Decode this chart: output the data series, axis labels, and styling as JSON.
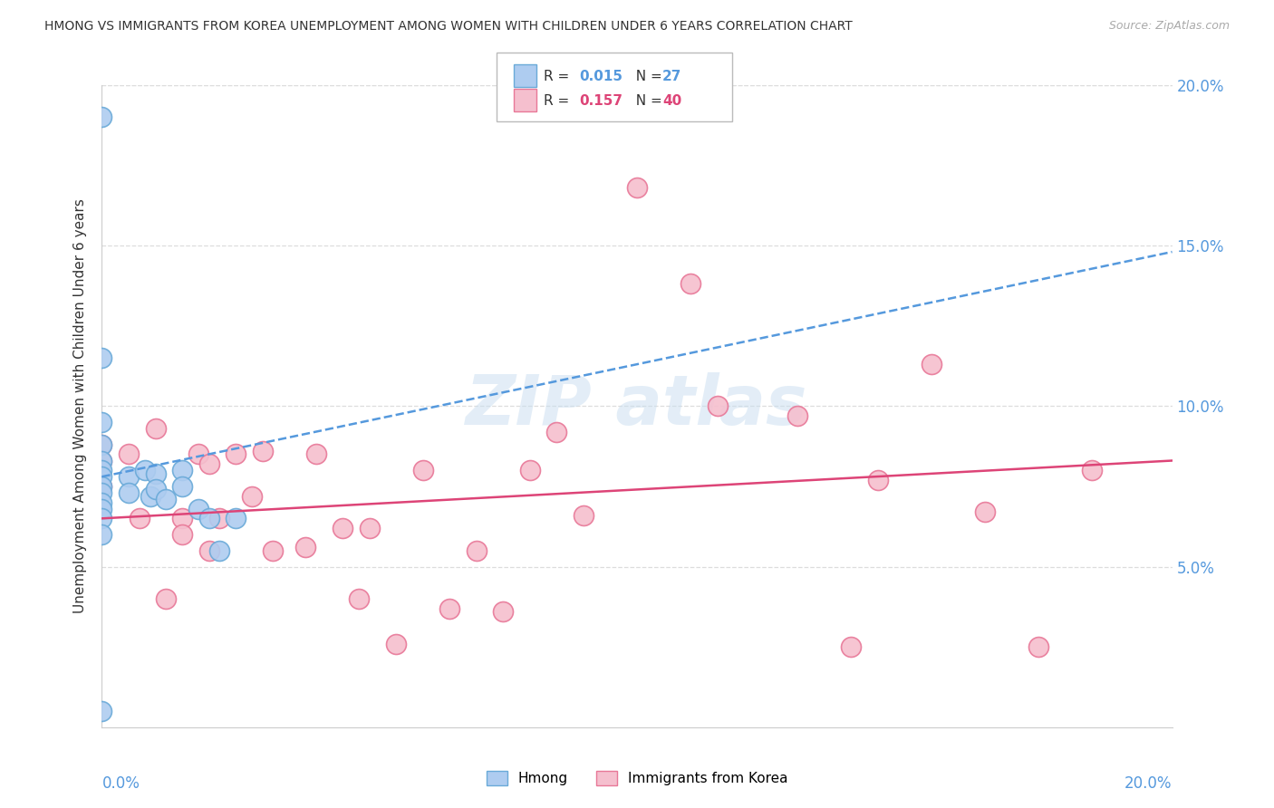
{
  "title": "HMONG VS IMMIGRANTS FROM KOREA UNEMPLOYMENT AMONG WOMEN WITH CHILDREN UNDER 6 YEARS CORRELATION CHART",
  "source": "Source: ZipAtlas.com",
  "ylabel": "Unemployment Among Women with Children Under 6 years",
  "xmin": 0.0,
  "xmax": 0.2,
  "ymin": 0.0,
  "ymax": 0.2,
  "yticks": [
    0.0,
    0.05,
    0.1,
    0.15,
    0.2
  ],
  "ytick_labels": [
    "",
    "5.0%",
    "10.0%",
    "15.0%",
    "20.0%"
  ],
  "hmong_color": "#aeccf0",
  "hmong_edge_color": "#6aaad8",
  "korea_color": "#f5bfce",
  "korea_edge_color": "#e87898",
  "trendline_hmong_color": "#5599dd",
  "trendline_korea_color": "#dd4477",
  "background_color": "#ffffff",
  "grid_color": "#dddddd",
  "hmong_trendline_x0": 0.0,
  "hmong_trendline_y0": 0.078,
  "hmong_trendline_x1": 0.2,
  "hmong_trendline_y1": 0.148,
  "korea_trendline_x0": 0.0,
  "korea_trendline_y0": 0.065,
  "korea_trendline_x1": 0.2,
  "korea_trendline_y1": 0.083,
  "hmong_x": [
    0.0,
    0.0,
    0.0,
    0.0,
    0.0,
    0.0,
    0.0,
    0.0,
    0.0,
    0.0,
    0.0,
    0.0,
    0.0,
    0.005,
    0.005,
    0.008,
    0.009,
    0.01,
    0.01,
    0.012,
    0.015,
    0.015,
    0.018,
    0.02,
    0.022,
    0.025,
    0.0
  ],
  "hmong_y": [
    0.19,
    0.115,
    0.095,
    0.088,
    0.083,
    0.08,
    0.078,
    0.075,
    0.073,
    0.07,
    0.068,
    0.065,
    0.06,
    0.078,
    0.073,
    0.08,
    0.072,
    0.079,
    0.074,
    0.071,
    0.08,
    0.075,
    0.068,
    0.065,
    0.055,
    0.065,
    0.005
  ],
  "korea_x": [
    0.0,
    0.0,
    0.0,
    0.005,
    0.007,
    0.01,
    0.012,
    0.015,
    0.015,
    0.018,
    0.02,
    0.02,
    0.022,
    0.025,
    0.028,
    0.03,
    0.032,
    0.038,
    0.04,
    0.045,
    0.048,
    0.05,
    0.055,
    0.06,
    0.065,
    0.07,
    0.075,
    0.08,
    0.085,
    0.09,
    0.1,
    0.11,
    0.115,
    0.13,
    0.14,
    0.145,
    0.155,
    0.165,
    0.175,
    0.185
  ],
  "korea_y": [
    0.088,
    0.083,
    0.075,
    0.085,
    0.065,
    0.093,
    0.04,
    0.065,
    0.06,
    0.085,
    0.082,
    0.055,
    0.065,
    0.085,
    0.072,
    0.086,
    0.055,
    0.056,
    0.085,
    0.062,
    0.04,
    0.062,
    0.026,
    0.08,
    0.037,
    0.055,
    0.036,
    0.08,
    0.092,
    0.066,
    0.168,
    0.138,
    0.1,
    0.097,
    0.025,
    0.077,
    0.113,
    0.067,
    0.025,
    0.08
  ]
}
